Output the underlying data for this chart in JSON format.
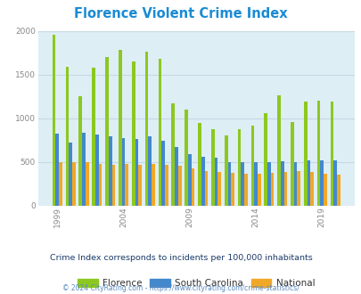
{
  "title": "Florence Violent Crime Index",
  "title_color": "#1a8bd4",
  "subtitle": "Crime Index corresponds to incidents per 100,000 inhabitants",
  "subtitle_color": "#1a3a6a",
  "footer": "© 2024 CityRating.com - https://www.cityrating.com/crime-statistics/",
  "footer_color": "#5a8ac0",
  "years": [
    1999,
    2000,
    2001,
    2002,
    2003,
    2004,
    2005,
    2006,
    2007,
    2008,
    2009,
    2010,
    2011,
    2012,
    2013,
    2014,
    2015,
    2016,
    2017,
    2018,
    2019,
    2020
  ],
  "florence": [
    1960,
    1590,
    1250,
    1580,
    1700,
    1780,
    1650,
    1760,
    1680,
    1170,
    1100,
    950,
    880,
    800,
    880,
    920,
    1060,
    1260,
    960,
    1190,
    1200,
    1190
  ],
  "south_carolina": [
    820,
    720,
    840,
    810,
    790,
    770,
    760,
    790,
    740,
    670,
    590,
    560,
    550,
    500,
    500,
    500,
    500,
    510,
    500,
    520,
    520,
    520
  ],
  "national": [
    500,
    500,
    500,
    480,
    470,
    475,
    470,
    480,
    470,
    455,
    430,
    400,
    385,
    380,
    370,
    365,
    375,
    390,
    395,
    385,
    370,
    360
  ],
  "florence_color": "#8cc820",
  "sc_color": "#4488cc",
  "national_color": "#f0a828",
  "background_color": "#ddeef5",
  "ylim": [
    0,
    2000
  ],
  "yticks": [
    0,
    500,
    1000,
    1500,
    2000
  ],
  "xtick_years": [
    1999,
    2004,
    2009,
    2014,
    2019
  ],
  "bar_width": 0.25,
  "legend_labels": [
    "Florence",
    "South Carolina",
    "National"
  ]
}
